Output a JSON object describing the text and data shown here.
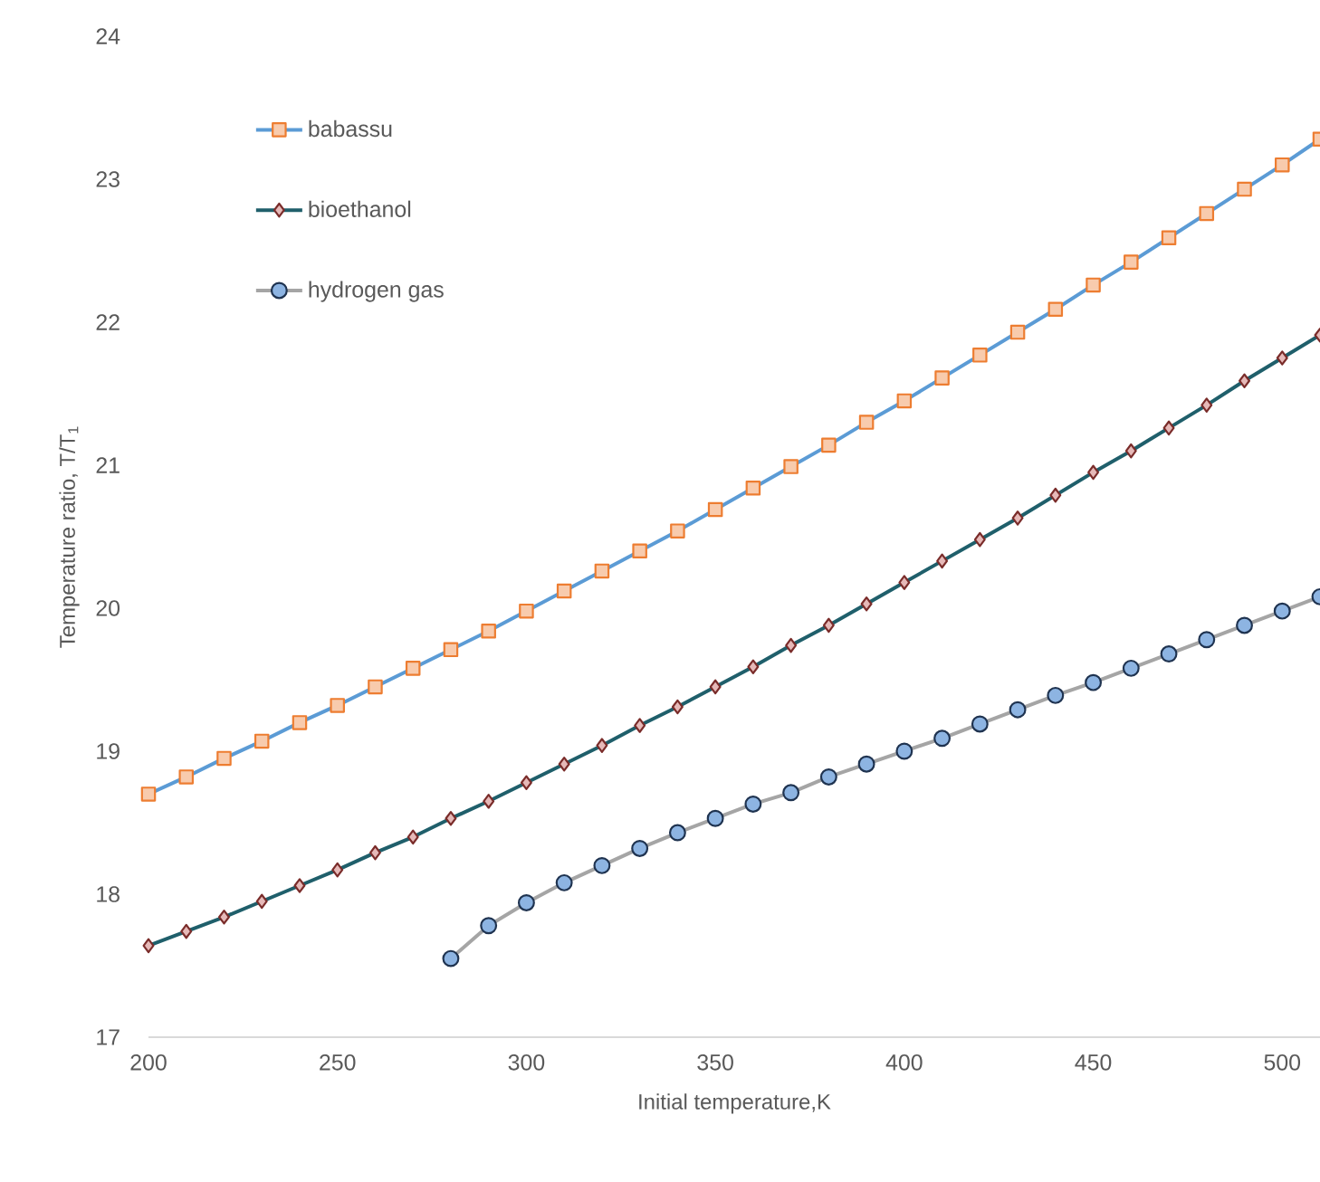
{
  "chart_data": {
    "type": "line",
    "xlabel": "Initial temperature,K",
    "ylabel": "Temperature ratio, T/T$_{1}$",
    "xlim": [
      200,
      510
    ],
    "ylim": [
      17,
      24
    ],
    "xticks": [
      200,
      250,
      300,
      350,
      400,
      450,
      500
    ],
    "yticks": [
      17,
      18,
      19,
      20,
      21,
      22,
      23,
      24
    ],
    "grid": false,
    "legend": "top left",
    "series": [
      {
        "name": "babassu",
        "color": "#5b9bd5",
        "marker": "square",
        "x": [
          200,
          210,
          220,
          230,
          240,
          250,
          260,
          270,
          280,
          290,
          300,
          310,
          320,
          330,
          340,
          350,
          360,
          370,
          380,
          390,
          400,
          410,
          420,
          430,
          440,
          450,
          460,
          470,
          480,
          490,
          500,
          510
        ],
        "values": [
          18.7,
          18.82,
          18.95,
          19.07,
          19.2,
          19.32,
          19.45,
          19.58,
          19.71,
          19.84,
          19.98,
          20.12,
          20.26,
          20.4,
          20.54,
          20.69,
          20.84,
          20.99,
          21.14,
          21.3,
          21.45,
          21.61,
          21.77,
          21.93,
          22.09,
          22.26,
          22.42,
          22.59,
          22.76,
          22.93,
          23.1,
          23.28
        ]
      },
      {
        "name": "bioethanol",
        "color": "#1f5f6b",
        "marker": "diamond",
        "x": [
          200,
          210,
          220,
          230,
          240,
          250,
          260,
          270,
          280,
          290,
          300,
          310,
          320,
          330,
          340,
          350,
          360,
          370,
          380,
          390,
          400,
          410,
          420,
          430,
          440,
          450,
          460,
          470,
          480,
          490,
          500,
          510
        ],
        "values": [
          17.64,
          17.74,
          17.84,
          17.95,
          18.06,
          18.17,
          18.29,
          18.4,
          18.53,
          18.65,
          18.78,
          18.91,
          19.04,
          19.18,
          19.31,
          19.45,
          19.59,
          19.74,
          19.88,
          20.03,
          20.18,
          20.33,
          20.48,
          20.63,
          20.79,
          20.95,
          21.1,
          21.26,
          21.42,
          21.59,
          21.75,
          21.91
        ]
      },
      {
        "name": "hydrogen gas",
        "color": "#a5a5a5",
        "marker": "circle",
        "x": [
          280,
          290,
          300,
          310,
          320,
          330,
          340,
          350,
          360,
          370,
          380,
          390,
          400,
          410,
          420,
          430,
          440,
          450,
          460,
          470,
          480,
          490,
          500,
          510
        ],
        "values": [
          17.55,
          17.78,
          17.94,
          18.08,
          18.2,
          18.32,
          18.43,
          18.53,
          18.63,
          18.71,
          18.82,
          18.91,
          19.0,
          19.09,
          19.19,
          19.29,
          19.39,
          19.48,
          19.58,
          19.68,
          19.78,
          19.88,
          19.98,
          20.08
        ]
      }
    ]
  }
}
